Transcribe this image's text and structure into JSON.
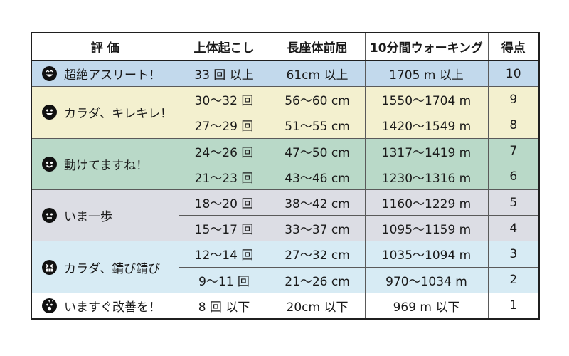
{
  "headers": [
    "評 価",
    "上体起こし",
    "長座体前屈",
    "10分間ウォーキング",
    "得点"
  ],
  "groups": [
    {
      "label": "超絶アスリート！",
      "icon": "very-happy-face-icon",
      "color": "#c2d9ec",
      "rows": [
        {
          "situp": "33 回 以上",
          "reach": "61cm 以上",
          "walk": "1705 m 以上",
          "score": "10"
        }
      ]
    },
    {
      "label": "カラダ、キレキレ！",
      "icon": "happy-face-icon",
      "color": "#f3f0cf",
      "rows": [
        {
          "situp": "30～32 回",
          "reach": "56～60 cm",
          "walk": "1550～1704 m",
          "score": "9"
        },
        {
          "situp": "27～29 回",
          "reach": "51～55 cm",
          "walk": "1420～1549 m",
          "score": "8"
        }
      ]
    },
    {
      "label": "動けてますね！",
      "icon": "smile-face-icon",
      "color": "#b9d9c8",
      "rows": [
        {
          "situp": "24～26 回",
          "reach": "47～50 cm",
          "walk": "1317～1419 m",
          "score": "7"
        },
        {
          "situp": "21～23 回",
          "reach": "43～46 cm",
          "walk": "1230～1316 m",
          "score": "6"
        }
      ]
    },
    {
      "label": "いま一歩",
      "icon": "neutral-face-icon",
      "color": "#dcdde4",
      "rows": [
        {
          "situp": "18～20 回",
          "reach": "38～42 cm",
          "walk": "1160～1229 m",
          "score": "5"
        },
        {
          "situp": "15～17 回",
          "reach": "33～37 cm",
          "walk": "1095～1159 m",
          "score": "4"
        }
      ]
    },
    {
      "label": "カラダ、錆び錆び",
      "icon": "grimace-face-icon",
      "color": "#d7ebf4",
      "rows": [
        {
          "situp": "12～14 回",
          "reach": "27～32 cm",
          "walk": "1035～1094 m",
          "score": "3"
        },
        {
          "situp": "9～11 回",
          "reach": "21～26 cm",
          "walk": "970～1034 m",
          "score": "2"
        }
      ]
    },
    {
      "label": "いますぐ改善を！",
      "icon": "shocked-face-icon",
      "color": "#ffffff",
      "rows": [
        {
          "situp": "8 回 以下",
          "reach": "20cm 以下",
          "walk": "969 m 以下",
          "score": "1"
        }
      ]
    }
  ]
}
